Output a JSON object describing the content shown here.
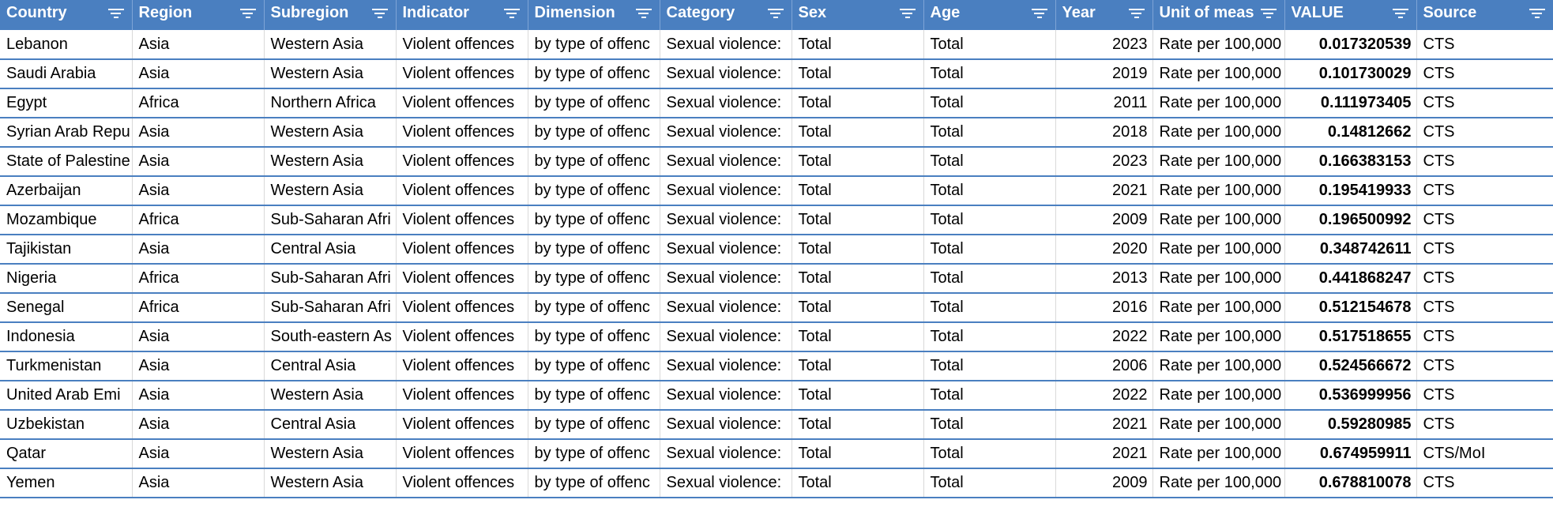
{
  "columns": [
    {
      "key": "country",
      "label": "Country"
    },
    {
      "key": "region",
      "label": "Region"
    },
    {
      "key": "subregion",
      "label": "Subregion"
    },
    {
      "key": "indicator",
      "label": "Indicator"
    },
    {
      "key": "dimension",
      "label": "Dimension"
    },
    {
      "key": "category",
      "label": "Category"
    },
    {
      "key": "sex",
      "label": "Sex"
    },
    {
      "key": "age",
      "label": "Age"
    },
    {
      "key": "year",
      "label": "Year"
    },
    {
      "key": "unit",
      "label": "Unit of meas"
    },
    {
      "key": "value",
      "label": "VALUE"
    },
    {
      "key": "source",
      "label": "Source"
    }
  ],
  "icons": {
    "filter": "filter-dropdown-icon"
  },
  "colors": {
    "header_bg": "#4a7fc0",
    "header_text": "#ffffff",
    "row_border": "#4a7fc0"
  },
  "rows": [
    {
      "country": "Lebanon",
      "region": "Asia",
      "subregion": "Western Asia",
      "indicator": "Violent offences",
      "dimension": "by type of offenc",
      "category": "Sexual violence:",
      "sex": "Total",
      "age": "Total",
      "year": "2023",
      "unit": "Rate per 100,000",
      "value": "0.017320539",
      "source": "CTS"
    },
    {
      "country": "Saudi Arabia",
      "region": "Asia",
      "subregion": "Western Asia",
      "indicator": "Violent offences",
      "dimension": "by type of offenc",
      "category": "Sexual violence:",
      "sex": "Total",
      "age": "Total",
      "year": "2019",
      "unit": "Rate per 100,000",
      "value": "0.101730029",
      "source": "CTS"
    },
    {
      "country": "Egypt",
      "region": "Africa",
      "subregion": "Northern Africa",
      "indicator": "Violent offences",
      "dimension": "by type of offenc",
      "category": "Sexual violence:",
      "sex": "Total",
      "age": "Total",
      "year": "2011",
      "unit": "Rate per 100,000",
      "value": "0.111973405",
      "source": "CTS"
    },
    {
      "country": "Syrian Arab Repu",
      "region": "Asia",
      "subregion": "Western Asia",
      "indicator": "Violent offences",
      "dimension": "by type of offenc",
      "category": "Sexual violence:",
      "sex": "Total",
      "age": "Total",
      "year": "2018",
      "unit": "Rate per 100,000",
      "value": "0.14812662",
      "source": "CTS"
    },
    {
      "country": "State of Palestine",
      "region": "Asia",
      "subregion": "Western Asia",
      "indicator": "Violent offences",
      "dimension": "by type of offenc",
      "category": "Sexual violence:",
      "sex": "Total",
      "age": "Total",
      "year": "2023",
      "unit": "Rate per 100,000",
      "value": "0.166383153",
      "source": "CTS"
    },
    {
      "country": "Azerbaijan",
      "region": "Asia",
      "subregion": "Western Asia",
      "indicator": "Violent offences",
      "dimension": "by type of offenc",
      "category": "Sexual violence:",
      "sex": "Total",
      "age": "Total",
      "year": "2021",
      "unit": "Rate per 100,000",
      "value": "0.195419933",
      "source": "CTS"
    },
    {
      "country": "Mozambique",
      "region": "Africa",
      "subregion": "Sub-Saharan Afri",
      "indicator": "Violent offences",
      "dimension": "by type of offenc",
      "category": "Sexual violence:",
      "sex": "Total",
      "age": "Total",
      "year": "2009",
      "unit": "Rate per 100,000",
      "value": "0.196500992",
      "source": "CTS"
    },
    {
      "country": "Tajikistan",
      "region": "Asia",
      "subregion": "Central Asia",
      "indicator": "Violent offences",
      "dimension": "by type of offenc",
      "category": "Sexual violence:",
      "sex": "Total",
      "age": "Total",
      "year": "2020",
      "unit": "Rate per 100,000",
      "value": "0.348742611",
      "source": "CTS"
    },
    {
      "country": "Nigeria",
      "region": "Africa",
      "subregion": "Sub-Saharan Afri",
      "indicator": "Violent offences",
      "dimension": "by type of offenc",
      "category": "Sexual violence:",
      "sex": "Total",
      "age": "Total",
      "year": "2013",
      "unit": "Rate per 100,000",
      "value": "0.441868247",
      "source": "CTS"
    },
    {
      "country": "Senegal",
      "region": "Africa",
      "subregion": "Sub-Saharan Afri",
      "indicator": "Violent offences",
      "dimension": "by type of offenc",
      "category": "Sexual violence:",
      "sex": "Total",
      "age": "Total",
      "year": "2016",
      "unit": "Rate per 100,000",
      "value": "0.512154678",
      "source": "CTS"
    },
    {
      "country": "Indonesia",
      "region": "Asia",
      "subregion": "South-eastern As",
      "indicator": "Violent offences",
      "dimension": "by type of offenc",
      "category": "Sexual violence:",
      "sex": "Total",
      "age": "Total",
      "year": "2022",
      "unit": "Rate per 100,000",
      "value": "0.517518655",
      "source": "CTS"
    },
    {
      "country": "Turkmenistan",
      "region": "Asia",
      "subregion": "Central Asia",
      "indicator": "Violent offences",
      "dimension": "by type of offenc",
      "category": "Sexual violence:",
      "sex": "Total",
      "age": "Total",
      "year": "2006",
      "unit": "Rate per 100,000",
      "value": "0.524566672",
      "source": "CTS"
    },
    {
      "country": "United Arab Emi",
      "region": "Asia",
      "subregion": "Western Asia",
      "indicator": "Violent offences",
      "dimension": "by type of offenc",
      "category": "Sexual violence:",
      "sex": "Total",
      "age": "Total",
      "year": "2022",
      "unit": "Rate per 100,000",
      "value": "0.536999956",
      "source": "CTS"
    },
    {
      "country": "Uzbekistan",
      "region": "Asia",
      "subregion": "Central Asia",
      "indicator": "Violent offences",
      "dimension": "by type of offenc",
      "category": "Sexual violence:",
      "sex": "Total",
      "age": "Total",
      "year": "2021",
      "unit": "Rate per 100,000",
      "value": "0.59280985",
      "source": "CTS"
    },
    {
      "country": "Qatar",
      "region": "Asia",
      "subregion": "Western Asia",
      "indicator": "Violent offences",
      "dimension": "by type of offenc",
      "category": "Sexual violence:",
      "sex": "Total",
      "age": "Total",
      "year": "2021",
      "unit": "Rate per 100,000",
      "value": "0.674959911",
      "source": "CTS/MoI"
    },
    {
      "country": "Yemen",
      "region": "Asia",
      "subregion": "Western Asia",
      "indicator": "Violent offences",
      "dimension": "by type of offenc",
      "category": "Sexual violence:",
      "sex": "Total",
      "age": "Total",
      "year": "2009",
      "unit": "Rate per 100,000",
      "value": "0.678810078",
      "source": "CTS"
    }
  ]
}
